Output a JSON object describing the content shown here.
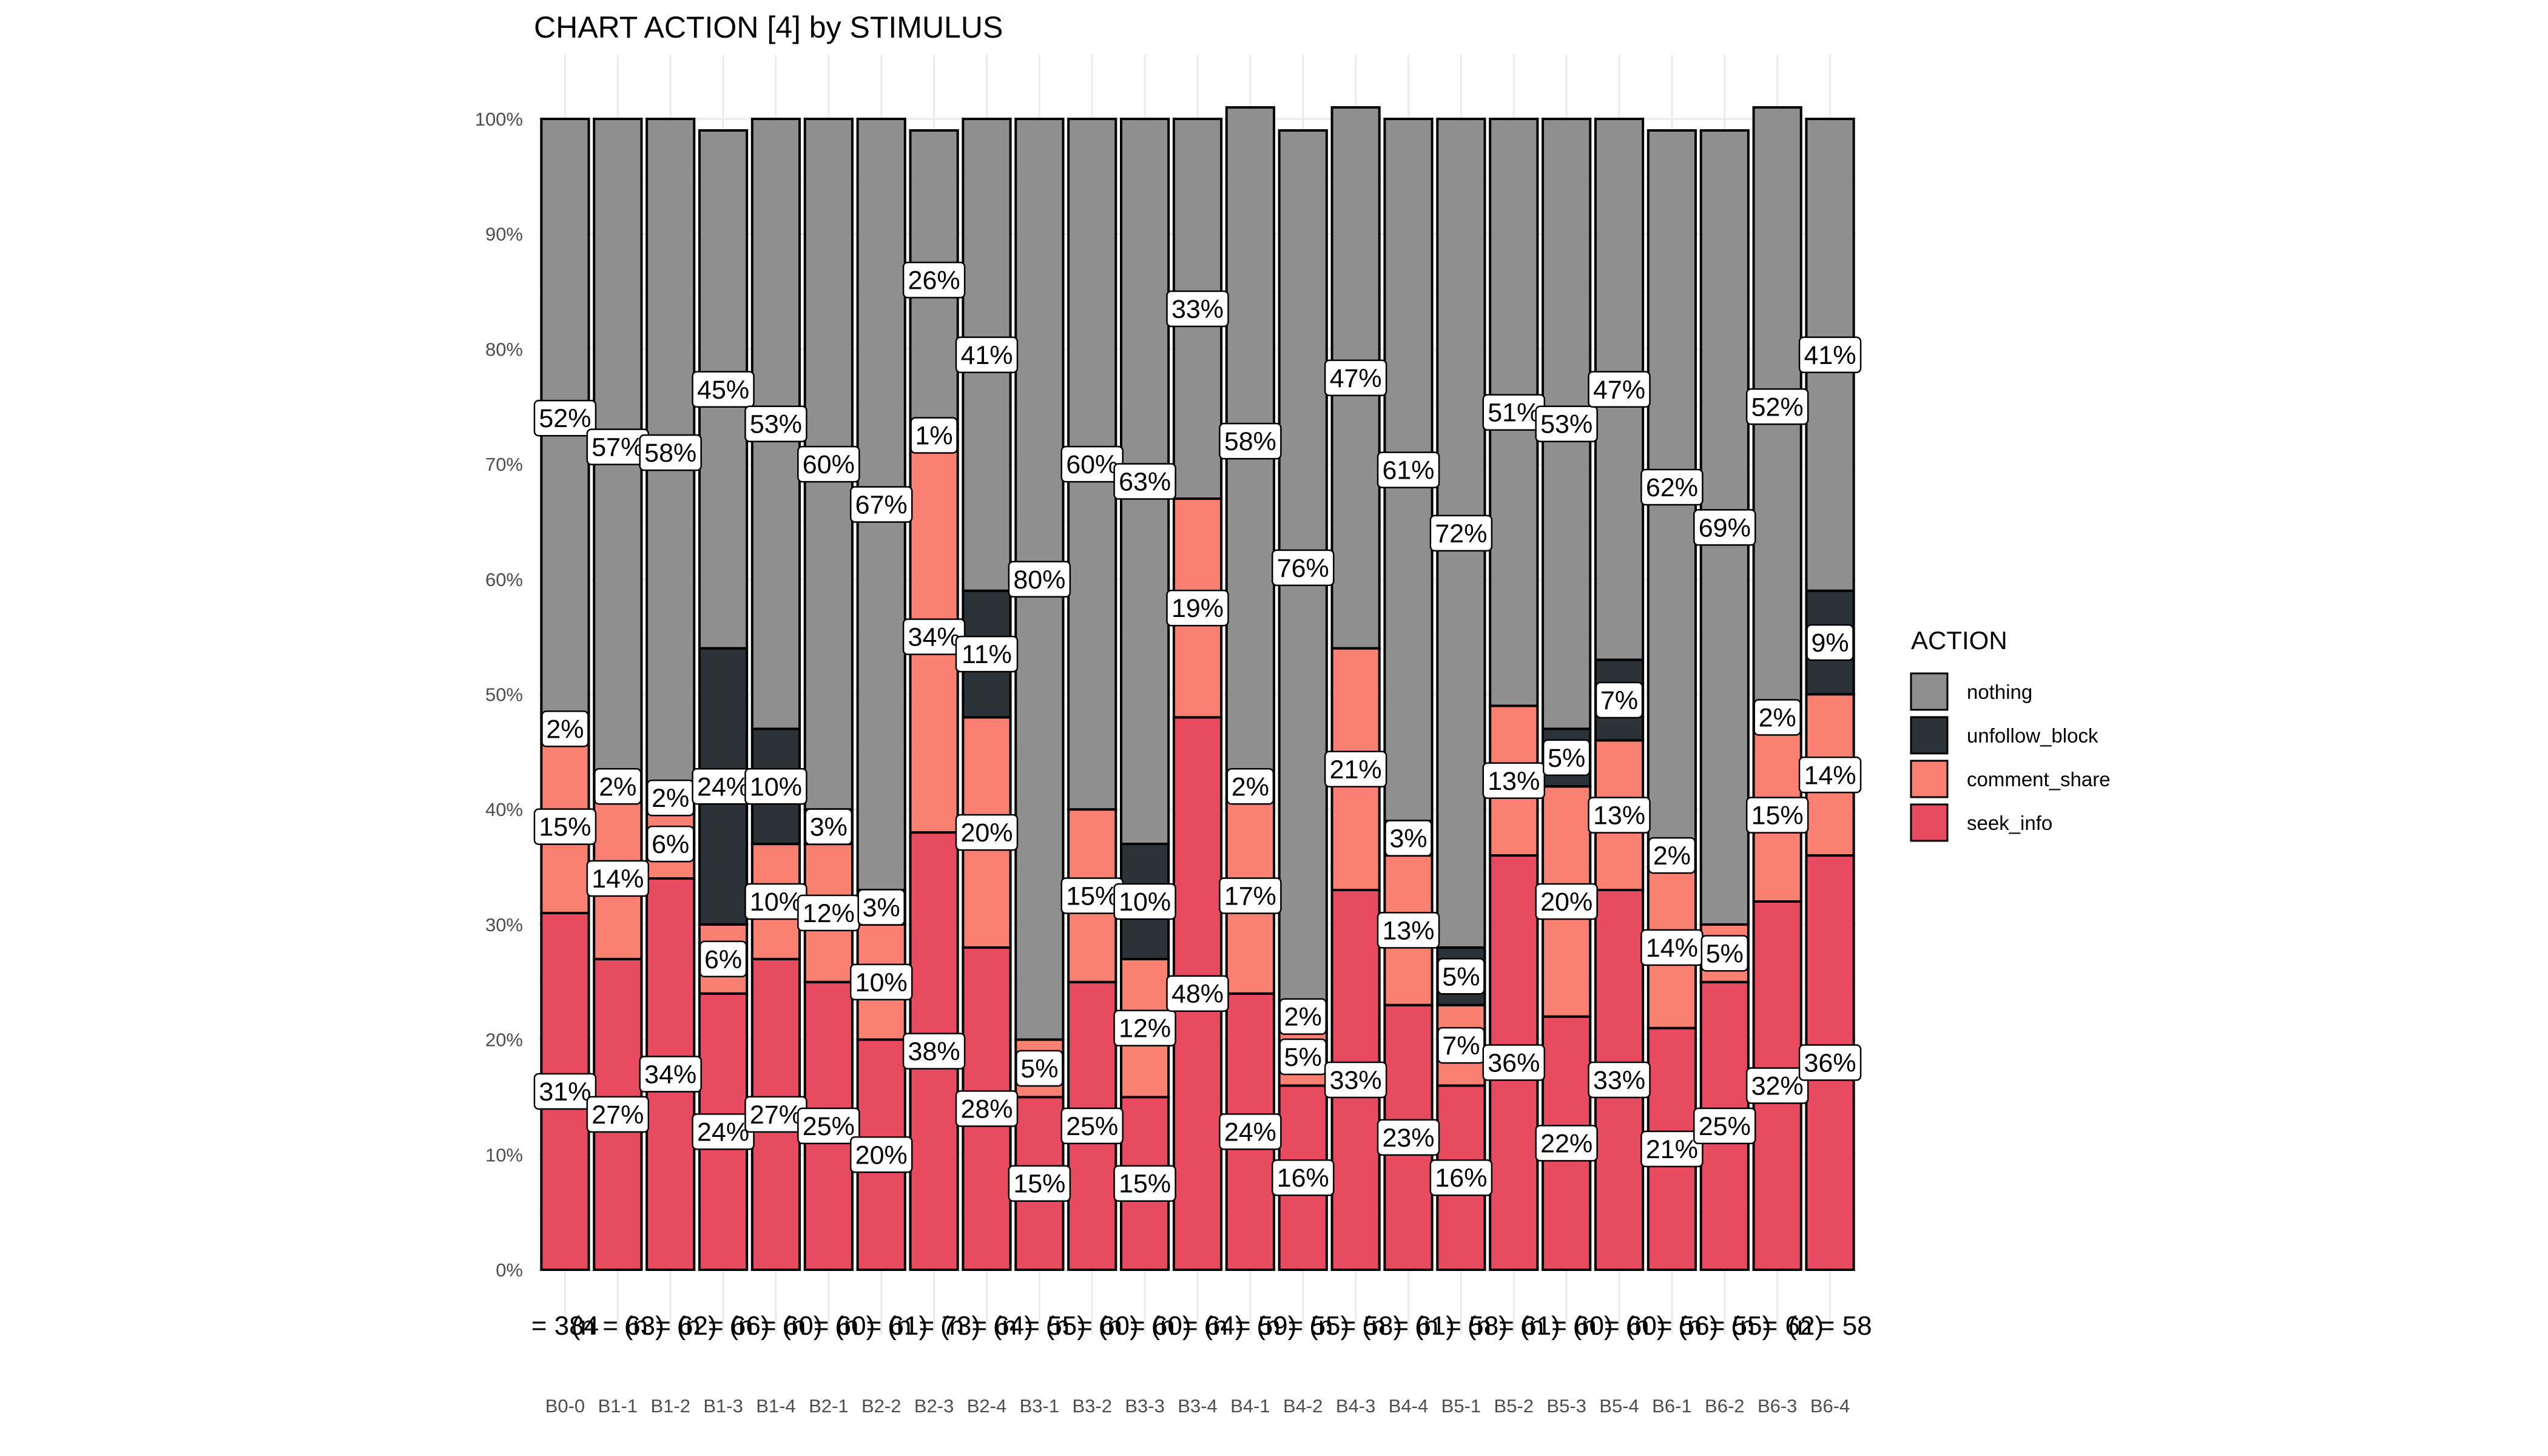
{
  "chart_data": {
    "type": "bar",
    "stacked": true,
    "percent": true,
    "title": "CHART ACTION [4] by STIMULUS",
    "xlabel": "",
    "ylabel": "",
    "ylim": [
      0,
      100
    ],
    "yticks": [
      "0%",
      "10%",
      "20%",
      "30%",
      "40%",
      "50%",
      "60%",
      "70%",
      "80%",
      "90%",
      "100%"
    ],
    "grid": true,
    "legend": {
      "title": "ACTION",
      "placement": "right",
      "entries": [
        "nothing",
        "unfollow_block",
        "comment_share",
        "seek_info"
      ]
    },
    "categories": [
      "B0-0",
      "B1-1",
      "B1-2",
      "B1-3",
      "B1-4",
      "B2-1",
      "B2-2",
      "B2-3",
      "B2-4",
      "B3-1",
      "B3-2",
      "B3-3",
      "B3-4",
      "B4-1",
      "B4-2",
      "B4-3",
      "B4-4",
      "B5-1",
      "B5-2",
      "B5-3",
      "B5-4",
      "B6-1",
      "B6-2",
      "B6-3",
      "B6-4"
    ],
    "n_labels": [
      "= 384",
      "(n = 63)",
      "(n = 62)",
      "(n = 66)",
      "(n = 60)",
      "(n = 60)",
      "(n = 61)",
      "(n = 73)",
      "(n = 64)",
      "(n = 55)",
      "(n = 60)",
      "(n = 60)",
      "(n = 64)",
      "(n = 59)",
      "(n = 55)",
      "(n = 58)",
      "(n = 61)",
      "(n = 58)",
      "(n = 61)",
      "(n = 60)",
      "(n = 60)",
      "(n = 56)",
      "(n = 55)",
      "(n = 62)",
      "(n = 58"
    ],
    "colors": {
      "nothing": "#8f8f8f",
      "unfollow_block": "#2b3338",
      "comment_share": "#fa8072",
      "seek_info": "#e84a5f"
    },
    "series": [
      {
        "name": "seek_info",
        "values": [
          31,
          27,
          34,
          24,
          27,
          25,
          20,
          38,
          28,
          15,
          25,
          15,
          48,
          24,
          16,
          33,
          23,
          16,
          36,
          22,
          33,
          21,
          25,
          32,
          36
        ]
      },
      {
        "name": "comment_share",
        "values": [
          15,
          14,
          6,
          6,
          10,
          12,
          10,
          34,
          20,
          5,
          15,
          12,
          19,
          17,
          5,
          21,
          13,
          7,
          13,
          20,
          13,
          14,
          5,
          15,
          14
        ]
      },
      {
        "name": "unfollow_block",
        "values": [
          2,
          2,
          2,
          24,
          10,
          3,
          3,
          1,
          11,
          0,
          0,
          10,
          0,
          2,
          2,
          0,
          3,
          5,
          0,
          5,
          7,
          2,
          0,
          2,
          9
        ]
      },
      {
        "name": "nothing",
        "values": [
          52,
          57,
          58,
          45,
          53,
          60,
          67,
          26,
          41,
          80,
          60,
          63,
          33,
          58,
          76,
          47,
          61,
          72,
          51,
          53,
          47,
          62,
          69,
          52,
          41
        ]
      }
    ],
    "segment_labels": [
      [
        "31%",
        "15%",
        "2%",
        "52%"
      ],
      [
        "27%",
        "14%",
        "2%",
        "57%"
      ],
      [
        "34%",
        "6%",
        "2%",
        "58%"
      ],
      [
        "24%",
        "6%",
        "24%",
        "45%"
      ],
      [
        "27%",
        "10%",
        "10%",
        "53%"
      ],
      [
        "25%",
        "12%",
        "3%",
        "60%"
      ],
      [
        "20%",
        "10%",
        "3%",
        "67%"
      ],
      [
        "38%",
        "34%",
        "1%",
        "26%"
      ],
      [
        "28%",
        "20%",
        "11%",
        "41%"
      ],
      [
        "15%",
        "5%",
        "",
        "80%"
      ],
      [
        "25%",
        "15%",
        "",
        "60%"
      ],
      [
        "15%",
        "12%",
        "10%",
        "63%"
      ],
      [
        "48%",
        "19%",
        "",
        "33%"
      ],
      [
        "24%",
        "17%",
        "2%",
        "58%"
      ],
      [
        "16%",
        "5%",
        "2%",
        "76%"
      ],
      [
        "33%",
        "21%",
        "",
        "47%"
      ],
      [
        "23%",
        "13%",
        "3%",
        "61%"
      ],
      [
        "16%",
        "7%",
        "5%",
        "72%"
      ],
      [
        "36%",
        "13%",
        "",
        "51%"
      ],
      [
        "22%",
        "20%",
        "5%",
        "53%"
      ],
      [
        "33%",
        "13%",
        "7%",
        "47%"
      ],
      [
        "21%",
        "14%",
        "2%",
        "62%"
      ],
      [
        "25%",
        "5%",
        "",
        "69%"
      ],
      [
        "32%",
        "15%",
        "2%",
        "52%"
      ],
      [
        "36%",
        "14%",
        "9%",
        "41%"
      ]
    ]
  }
}
